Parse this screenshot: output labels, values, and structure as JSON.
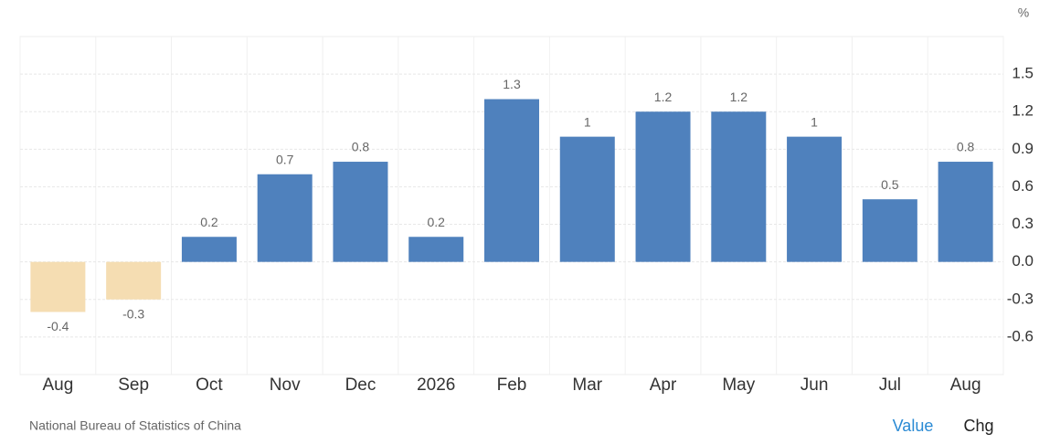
{
  "chart_data": {
    "type": "bar",
    "unit": "%",
    "categories": [
      "Aug",
      "Sep",
      "Oct",
      "Nov",
      "Dec",
      "2026",
      "Feb",
      "Mar",
      "Apr",
      "May",
      "Jun",
      "Jul",
      "Aug"
    ],
    "values": [
      -0.4,
      -0.3,
      0.2,
      0.7,
      0.8,
      0.2,
      1.3,
      1,
      1.2,
      1.2,
      1,
      0.5,
      0.8
    ],
    "color": "#4f81bd",
    "negative_color": "#f5ddb2",
    "ylim": [
      -0.9,
      1.8
    ],
    "yticks": [
      -0.6,
      -0.3,
      {
        "value": 0,
        "label": "0.0"
      },
      0.3,
      0.6,
      0.9,
      1.2,
      1.5
    ],
    "grid": true,
    "source": "National Bureau of Statistics of China",
    "buttons": [
      "Value",
      "Chg"
    ]
  }
}
